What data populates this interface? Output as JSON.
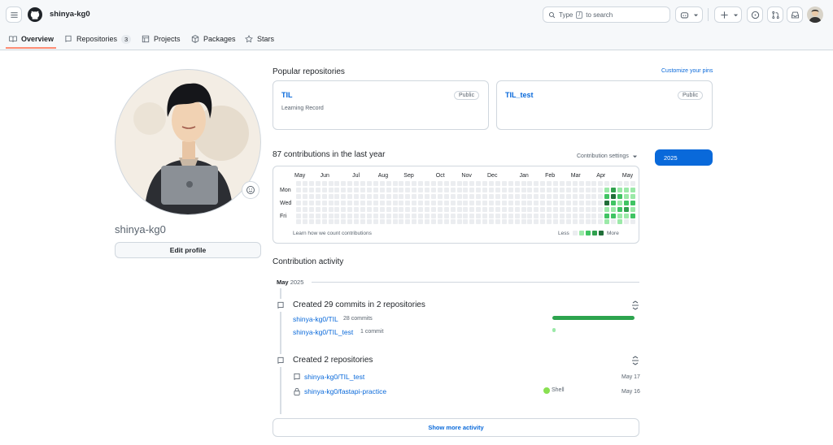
{
  "header": {
    "username": "shinya-kg0",
    "search_prefix": "Type",
    "search_key": "/",
    "search_suffix": "to search"
  },
  "tabs": [
    {
      "label": "Overview",
      "active": true
    },
    {
      "label": "Repositories",
      "count": "3"
    },
    {
      "label": "Projects"
    },
    {
      "label": "Packages"
    },
    {
      "label": "Stars"
    }
  ],
  "profile": {
    "name": "shinya-kg0",
    "edit_label": "Edit profile"
  },
  "popular": {
    "title": "Popular repositories",
    "customize": "Customize your pins",
    "repos": [
      {
        "name": "TIL",
        "visibility": "Public",
        "description": "Learning Record"
      },
      {
        "name": "TIL_test",
        "visibility": "Public",
        "description": ""
      }
    ]
  },
  "contributions": {
    "title": "87 contributions in the last year",
    "settings": "Contribution settings",
    "year": "2025",
    "months": [
      "May",
      "Jun",
      "Jul",
      "Aug",
      "Sep",
      "Oct",
      "Nov",
      "Dec",
      "Jan",
      "Feb",
      "Mar",
      "Apr",
      "May"
    ],
    "days": [
      "Mon",
      "Wed",
      "Fri"
    ],
    "learn": "Learn how we count contributions",
    "less": "Less",
    "more": "More",
    "colors": [
      "#ebedf0",
      "#9be9a8",
      "#40c463",
      "#30a14e",
      "#216e39"
    ],
    "recent_weeks": [
      [
        0,
        1,
        2,
        4,
        1,
        2,
        1
      ],
      [
        0,
        3,
        4,
        2,
        1,
        2,
        0
      ],
      [
        0,
        1,
        2,
        1,
        2,
        1,
        1
      ],
      [
        0,
        1,
        1,
        2,
        3,
        1,
        0
      ],
      [
        0,
        1,
        1,
        2,
        1,
        2,
        0
      ]
    ]
  },
  "activity": {
    "title": "Contribution activity",
    "month": "May",
    "year": "2025",
    "commits": {
      "title": "Created 29 commits in 2 repositories",
      "rows": [
        {
          "repo": "shinya-kg0/TIL",
          "count": "28 commits",
          "fraction": 0.97
        },
        {
          "repo": "shinya-kg0/TIL_test",
          "count": "1 commit",
          "fraction": 0.03
        }
      ]
    },
    "created": {
      "title": "Created 2 repositories",
      "rows": [
        {
          "repo": "shinya-kg0/TIL_test",
          "lang": "",
          "date": "May 17"
        },
        {
          "repo": "shinya-kg0/fastapi-practice",
          "lang": "Shell",
          "date": "May 16"
        }
      ]
    },
    "show_more": "Show more activity"
  }
}
